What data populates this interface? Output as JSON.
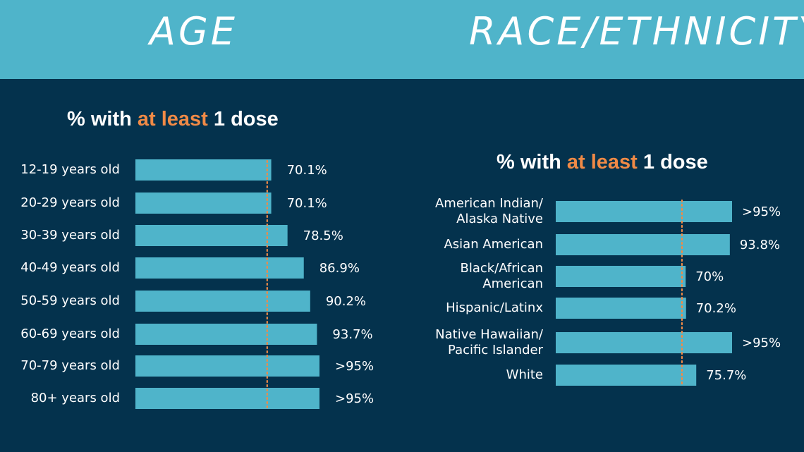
{
  "header": {
    "age_title": "AGE",
    "race_title": "RACE/ETHNICITY"
  },
  "subtitle": {
    "prefix": "% ",
    "mid": "with ",
    "highlight": "at least",
    "suffix": " 1 dose"
  },
  "colors": {
    "header_bg": "#4fb4ca",
    "page_bg": "#04324d",
    "bar": "#4fb4ca",
    "accent": "#f08a46",
    "text": "#ffffff"
  },
  "chart_data": [
    {
      "type": "bar",
      "orientation": "horizontal",
      "title": "% with at least 1 dose",
      "categories": [
        "12-19 years old",
        "20-29 years old",
        "30-39 years old",
        "40-49 years old",
        "50-59 years old",
        "60-69 years old",
        "70-79 years old",
        "80+ years old"
      ],
      "values": [
        70.1,
        70.1,
        78.5,
        86.9,
        90.2,
        93.7,
        95,
        95
      ],
      "value_labels": [
        "70.1%",
        "70.1%",
        "78.5%",
        "86.9%",
        "90.2%",
        "93.7%",
        ">95%",
        ">95%"
      ],
      "reference_line": 68,
      "xlim": [
        0,
        95
      ],
      "grid": false,
      "legend": "none"
    },
    {
      "type": "bar",
      "orientation": "horizontal",
      "title": "% with at least 1 dose",
      "categories": [
        [
          "American Indian/",
          "Alaska Native"
        ],
        [
          "Asian American"
        ],
        [
          "Black/African",
          "American"
        ],
        [
          "Hispanic/Latinx"
        ],
        [
          "Native Hawaiian/",
          "Pacific Islander"
        ],
        [
          "White"
        ]
      ],
      "values": [
        95,
        93.8,
        70,
        70.2,
        95,
        75.7
      ],
      "value_labels": [
        ">95%",
        "93.8%",
        "70%",
        "70.2%",
        ">95%",
        "75.7%"
      ],
      "reference_line": 68,
      "xlim": [
        0,
        95
      ],
      "grid": false,
      "legend": "none"
    }
  ]
}
